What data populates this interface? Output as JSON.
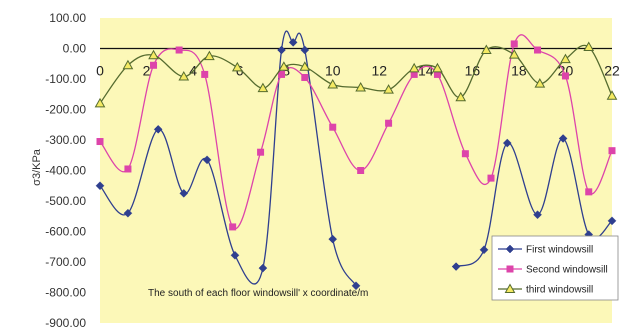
{
  "chart_data": {
    "type": "line",
    "title": "",
    "xlabel": "The south of each floor windowsill' x coordinate/m",
    "ylabel": "σ3/KPa",
    "xlim": [
      0,
      22
    ],
    "ylim": [
      -900,
      100
    ],
    "x_ticks": [
      "0",
      "2",
      "4",
      "6",
      "8",
      "10",
      "12",
      "14",
      "16",
      "18",
      "20",
      "22"
    ],
    "y_ticks": [
      "100.00",
      "0.00",
      "-100.00",
      "-200.00",
      "-300.00",
      "-400.00",
      "-500.00",
      "-600.00",
      "-700.00",
      "-800.00",
      "-900.00"
    ],
    "grid": false,
    "legend_position": "bottom-right",
    "series": [
      {
        "name": "First windowsill",
        "color": "#2f3f8f",
        "marker": "diamond",
        "segments": [
          [
            [
              0,
              -450
            ],
            [
              1.2,
              -540
            ],
            [
              2.5,
              -265
            ],
            [
              3.6,
              -475
            ],
            [
              4.6,
              -365
            ],
            [
              5.8,
              -678
            ],
            [
              7.0,
              -720
            ],
            [
              7.8,
              -5
            ],
            [
              8.3,
              20
            ],
            [
              8.8,
              -5
            ],
            [
              10.0,
              -625
            ],
            [
              11.0,
              -778
            ]
          ],
          [
            [
              15.3,
              -715
            ],
            [
              16.5,
              -660
            ],
            [
              17.5,
              -310
            ],
            [
              18.8,
              -545
            ],
            [
              19.9,
              -295
            ],
            [
              21.0,
              -610
            ],
            [
              22,
              -565
            ]
          ]
        ]
      },
      {
        "name": "Second windowsill",
        "color": "#dd44aa",
        "marker": "square",
        "segments": [
          [
            [
              0,
              -305
            ],
            [
              1.2,
              -395
            ],
            [
              2.3,
              -55
            ],
            [
              3.4,
              -5
            ],
            [
              4.5,
              -85
            ],
            [
              5.7,
              -585
            ],
            [
              6.9,
              -340
            ],
            [
              7.8,
              -85
            ],
            [
              8.8,
              -95
            ],
            [
              10.0,
              -258
            ],
            [
              11.2,
              -400
            ],
            [
              12.4,
              -245
            ],
            [
              13.5,
              -85
            ],
            [
              14.5,
              -85
            ],
            [
              15.7,
              -345
            ],
            [
              16.8,
              -425
            ],
            [
              17.8,
              15
            ],
            [
              18.8,
              -5
            ],
            [
              20.0,
              -90
            ],
            [
              21.0,
              -470
            ],
            [
              22,
              -335
            ]
          ]
        ]
      },
      {
        "name": "third windowsill",
        "color": "#556b2f",
        "marker": "triangle",
        "segments": [
          [
            [
              0,
              -180
            ],
            [
              1.2,
              -55
            ],
            [
              2.3,
              -22
            ],
            [
              3.6,
              -92
            ],
            [
              4.7,
              -25
            ],
            [
              5.9,
              -62
            ],
            [
              7.0,
              -130
            ],
            [
              7.9,
              -60
            ],
            [
              8.8,
              -60
            ],
            [
              10.0,
              -118
            ],
            [
              11.2,
              -128
            ],
            [
              12.4,
              -135
            ],
            [
              13.5,
              -65
            ],
            [
              14.5,
              -65
            ],
            [
              15.5,
              -160
            ],
            [
              16.6,
              -5
            ],
            [
              17.8,
              -20
            ],
            [
              18.9,
              -115
            ],
            [
              20.0,
              -35
            ],
            [
              21.0,
              5
            ],
            [
              22,
              -155
            ]
          ]
        ]
      }
    ]
  }
}
